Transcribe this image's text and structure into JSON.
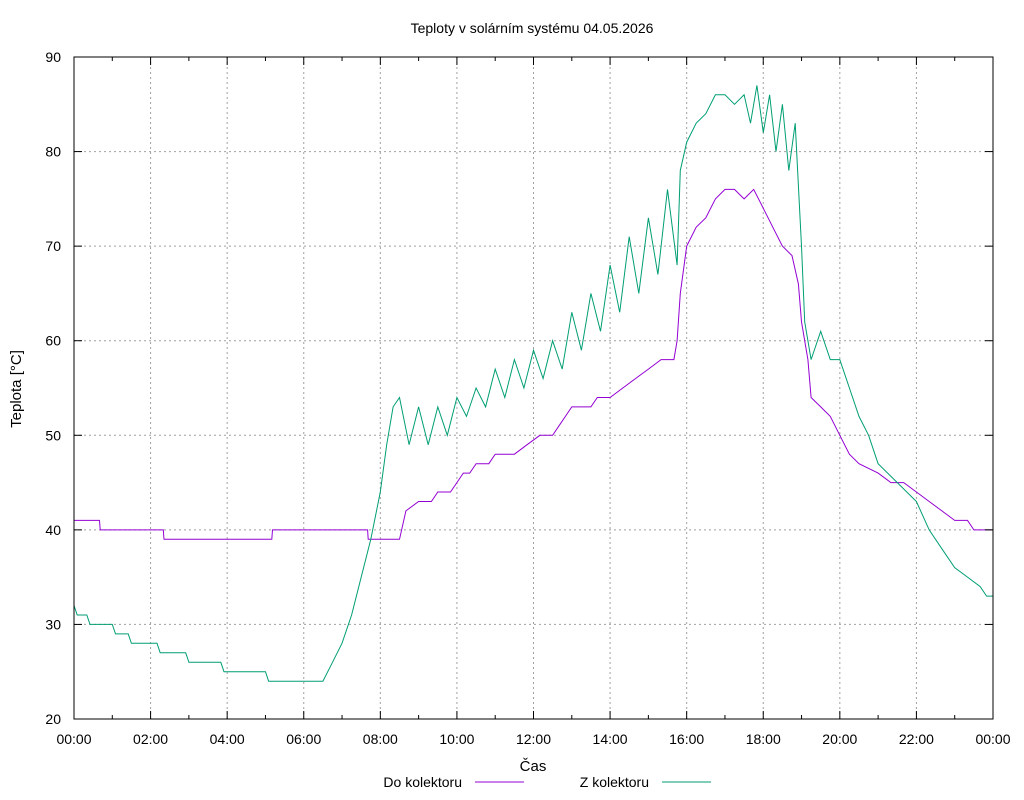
{
  "chart_data": {
    "type": "line",
    "title": "Teploty v solárním systému 04.05.2026",
    "xlabel": "Čas",
    "ylabel": "Teplota [°C]",
    "xlim": [
      "00:00",
      "24:00"
    ],
    "ylim": [
      20,
      90
    ],
    "x_ticks": [
      "00:00",
      "02:00",
      "04:00",
      "06:00",
      "08:00",
      "10:00",
      "12:00",
      "14:00",
      "16:00",
      "18:00",
      "20:00",
      "22:00",
      "00:00"
    ],
    "y_ticks": [
      20,
      30,
      40,
      50,
      60,
      70,
      80,
      90
    ],
    "grid": true,
    "legend_position": "bottom",
    "series": [
      {
        "name": "Do kolektoru",
        "color": "#9400d3",
        "points": [
          [
            "00:00",
            41
          ],
          [
            "00:40",
            41
          ],
          [
            "00:41",
            40
          ],
          [
            "02:20",
            40
          ],
          [
            "02:21",
            39
          ],
          [
            "05:10",
            39
          ],
          [
            "05:11",
            40
          ],
          [
            "07:40",
            40
          ],
          [
            "07:41",
            39
          ],
          [
            "08:30",
            39
          ],
          [
            "08:40",
            42
          ],
          [
            "09:00",
            43
          ],
          [
            "09:20",
            43
          ],
          [
            "09:30",
            44
          ],
          [
            "09:50",
            44
          ],
          [
            "10:00",
            45
          ],
          [
            "10:10",
            46
          ],
          [
            "10:20",
            46
          ],
          [
            "10:30",
            47
          ],
          [
            "10:50",
            47
          ],
          [
            "11:00",
            48
          ],
          [
            "11:20",
            48
          ],
          [
            "11:30",
            48
          ],
          [
            "11:50",
            49
          ],
          [
            "12:10",
            50
          ],
          [
            "12:30",
            50
          ],
          [
            "12:40",
            51
          ],
          [
            "12:50",
            52
          ],
          [
            "13:00",
            53
          ],
          [
            "13:20",
            53
          ],
          [
            "13:30",
            53
          ],
          [
            "13:40",
            54
          ],
          [
            "14:00",
            54
          ],
          [
            "14:20",
            55
          ],
          [
            "14:40",
            56
          ],
          [
            "15:00",
            57
          ],
          [
            "15:20",
            58
          ],
          [
            "15:40",
            58
          ],
          [
            "15:45",
            60
          ],
          [
            "15:50",
            65
          ],
          [
            "16:00",
            70
          ],
          [
            "16:15",
            72
          ],
          [
            "16:30",
            73
          ],
          [
            "16:45",
            75
          ],
          [
            "17:00",
            76
          ],
          [
            "17:15",
            76
          ],
          [
            "17:30",
            75
          ],
          [
            "17:45",
            76
          ],
          [
            "18:00",
            74
          ],
          [
            "18:15",
            72
          ],
          [
            "18:30",
            70
          ],
          [
            "18:45",
            69
          ],
          [
            "18:55",
            66
          ],
          [
            "19:00",
            62
          ],
          [
            "19:10",
            58
          ],
          [
            "19:15",
            54
          ],
          [
            "19:30",
            53
          ],
          [
            "19:45",
            52
          ],
          [
            "20:00",
            50
          ],
          [
            "20:15",
            48
          ],
          [
            "20:30",
            47
          ],
          [
            "21:00",
            46
          ],
          [
            "21:20",
            45
          ],
          [
            "21:40",
            45
          ],
          [
            "22:00",
            44
          ],
          [
            "22:20",
            43
          ],
          [
            "22:40",
            42
          ],
          [
            "23:00",
            41
          ],
          [
            "23:20",
            41
          ],
          [
            "23:30",
            40
          ],
          [
            "24:00",
            40
          ]
        ]
      },
      {
        "name": "Z kolektoru",
        "color": "#009e73",
        "points": [
          [
            "00:00",
            32
          ],
          [
            "00:05",
            31
          ],
          [
            "00:20",
            31
          ],
          [
            "00:25",
            30
          ],
          [
            "01:00",
            30
          ],
          [
            "01:05",
            29
          ],
          [
            "01:25",
            29
          ],
          [
            "01:30",
            28
          ],
          [
            "02:10",
            28
          ],
          [
            "02:15",
            27
          ],
          [
            "02:55",
            27
          ],
          [
            "03:00",
            26
          ],
          [
            "03:50",
            26
          ],
          [
            "03:55",
            25
          ],
          [
            "05:00",
            25
          ],
          [
            "05:05",
            24
          ],
          [
            "06:30",
            24
          ],
          [
            "06:45",
            26
          ],
          [
            "07:00",
            28
          ],
          [
            "07:15",
            31
          ],
          [
            "07:30",
            35
          ],
          [
            "07:45",
            39
          ],
          [
            "08:00",
            44
          ],
          [
            "08:10",
            49
          ],
          [
            "08:20",
            53
          ],
          [
            "08:30",
            54
          ],
          [
            "08:45",
            49
          ],
          [
            "09:00",
            53
          ],
          [
            "09:15",
            49
          ],
          [
            "09:30",
            53
          ],
          [
            "09:45",
            50
          ],
          [
            "10:00",
            54
          ],
          [
            "10:15",
            52
          ],
          [
            "10:30",
            55
          ],
          [
            "10:45",
            53
          ],
          [
            "11:00",
            57
          ],
          [
            "11:15",
            54
          ],
          [
            "11:30",
            58
          ],
          [
            "11:45",
            55
          ],
          [
            "12:00",
            59
          ],
          [
            "12:15",
            56
          ],
          [
            "12:30",
            60
          ],
          [
            "12:45",
            57
          ],
          [
            "13:00",
            63
          ],
          [
            "13:15",
            59
          ],
          [
            "13:30",
            65
          ],
          [
            "13:45",
            61
          ],
          [
            "14:00",
            68
          ],
          [
            "14:15",
            63
          ],
          [
            "14:30",
            71
          ],
          [
            "14:45",
            65
          ],
          [
            "15:00",
            73
          ],
          [
            "15:15",
            67
          ],
          [
            "15:30",
            76
          ],
          [
            "15:45",
            68
          ],
          [
            "15:50",
            78
          ],
          [
            "16:00",
            81
          ],
          [
            "16:15",
            83
          ],
          [
            "16:30",
            84
          ],
          [
            "16:45",
            86
          ],
          [
            "17:00",
            86
          ],
          [
            "17:15",
            85
          ],
          [
            "17:30",
            86
          ],
          [
            "17:40",
            83
          ],
          [
            "17:50",
            87
          ],
          [
            "18:00",
            82
          ],
          [
            "18:10",
            86
          ],
          [
            "18:20",
            80
          ],
          [
            "18:30",
            85
          ],
          [
            "18:40",
            78
          ],
          [
            "18:50",
            83
          ],
          [
            "19:00",
            70
          ],
          [
            "19:05",
            62
          ],
          [
            "19:15",
            58
          ],
          [
            "19:30",
            61
          ],
          [
            "19:45",
            58
          ],
          [
            "20:00",
            58
          ],
          [
            "20:15",
            55
          ],
          [
            "20:30",
            52
          ],
          [
            "20:45",
            50
          ],
          [
            "21:00",
            47
          ],
          [
            "21:30",
            45
          ],
          [
            "22:00",
            43
          ],
          [
            "22:20",
            40
          ],
          [
            "22:40",
            38
          ],
          [
            "23:00",
            36
          ],
          [
            "23:20",
            35
          ],
          [
            "23:40",
            34
          ],
          [
            "23:50",
            33
          ],
          [
            "24:00",
            33
          ]
        ]
      }
    ]
  }
}
